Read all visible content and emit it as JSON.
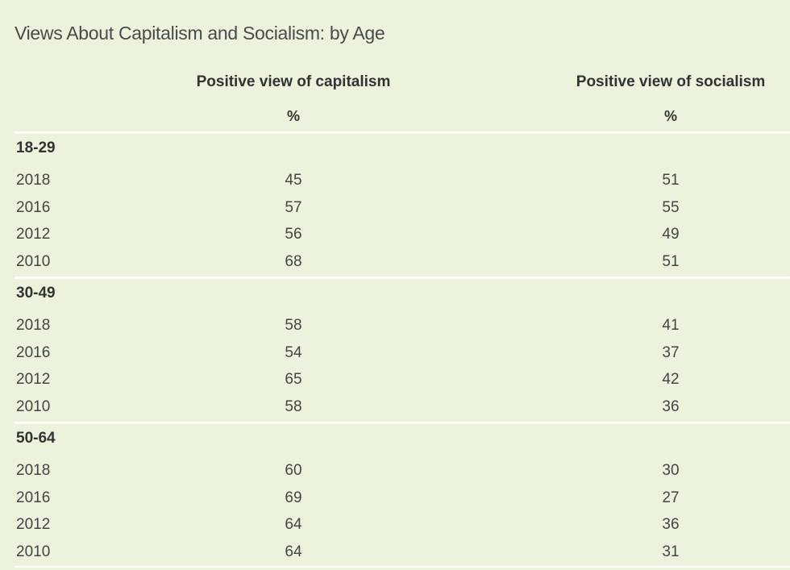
{
  "chart_data": {
    "type": "table",
    "title": "Views About Capitalism and Socialism: by Age",
    "columns": [
      {
        "label": "Positive view of capitalism",
        "unit": "%"
      },
      {
        "label": "Positive view of socialism",
        "unit": "%"
      }
    ],
    "groups": [
      {
        "label": "18-29",
        "rows": [
          {
            "year": "2018",
            "capitalism": "45",
            "socialism": "51"
          },
          {
            "year": "2016",
            "capitalism": "57",
            "socialism": "55"
          },
          {
            "year": "2012",
            "capitalism": "56",
            "socialism": "49"
          },
          {
            "year": "2010",
            "capitalism": "68",
            "socialism": "51"
          }
        ]
      },
      {
        "label": "30-49",
        "rows": [
          {
            "year": "2018",
            "capitalism": "58",
            "socialism": "41"
          },
          {
            "year": "2016",
            "capitalism": "54",
            "socialism": "37"
          },
          {
            "year": "2012",
            "capitalism": "65",
            "socialism": "42"
          },
          {
            "year": "2010",
            "capitalism": "58",
            "socialism": "36"
          }
        ]
      },
      {
        "label": "50-64",
        "rows": [
          {
            "year": "2018",
            "capitalism": "60",
            "socialism": "30"
          },
          {
            "year": "2016",
            "capitalism": "69",
            "socialism": "27"
          },
          {
            "year": "2012",
            "capitalism": "64",
            "socialism": "36"
          },
          {
            "year": "2010",
            "capitalism": "64",
            "socialism": "31"
          }
        ]
      }
    ]
  },
  "colors": {
    "background": "#ecf3dd",
    "rule": "#ffffff",
    "text": "#333333"
  }
}
